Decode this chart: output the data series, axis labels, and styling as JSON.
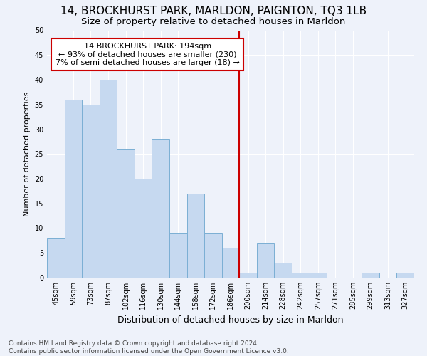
{
  "title1": "14, BROCKHURST PARK, MARLDON, PAIGNTON, TQ3 1LB",
  "title2": "Size of property relative to detached houses in Marldon",
  "xlabel": "Distribution of detached houses by size in Marldon",
  "ylabel": "Number of detached properties",
  "categories": [
    "45sqm",
    "59sqm",
    "73sqm",
    "87sqm",
    "102sqm",
    "116sqm",
    "130sqm",
    "144sqm",
    "158sqm",
    "172sqm",
    "186sqm",
    "200sqm",
    "214sqm",
    "228sqm",
    "242sqm",
    "257sqm",
    "271sqm",
    "285sqm",
    "299sqm",
    "313sqm",
    "327sqm"
  ],
  "values": [
    8,
    36,
    35,
    40,
    26,
    20,
    28,
    9,
    17,
    9,
    6,
    1,
    7,
    3,
    1,
    1,
    0,
    0,
    1,
    0,
    1
  ],
  "bar_color": "#c6d9f0",
  "bar_edge_color": "#7bafd4",
  "vline_pos": 10.5,
  "vline_color": "#cc0000",
  "ann_line1": "14 BROCKHURST PARK: 194sqm",
  "ann_line2": "← 93% of detached houses are smaller (230)",
  "ann_line3": "7% of semi-detached houses are larger (18) →",
  "ylim": [
    0,
    50
  ],
  "yticks": [
    0,
    5,
    10,
    15,
    20,
    25,
    30,
    35,
    40,
    45,
    50
  ],
  "footnote": "Contains HM Land Registry data © Crown copyright and database right 2024.\nContains public sector information licensed under the Open Government Licence v3.0.",
  "bg_color": "#eef2fa",
  "grid_color": "#ffffff",
  "title1_fontsize": 11,
  "title2_fontsize": 9.5,
  "xlabel_fontsize": 9,
  "ylabel_fontsize": 8,
  "tick_fontsize": 7,
  "ann_fontsize": 8,
  "footnote_fontsize": 6.5
}
